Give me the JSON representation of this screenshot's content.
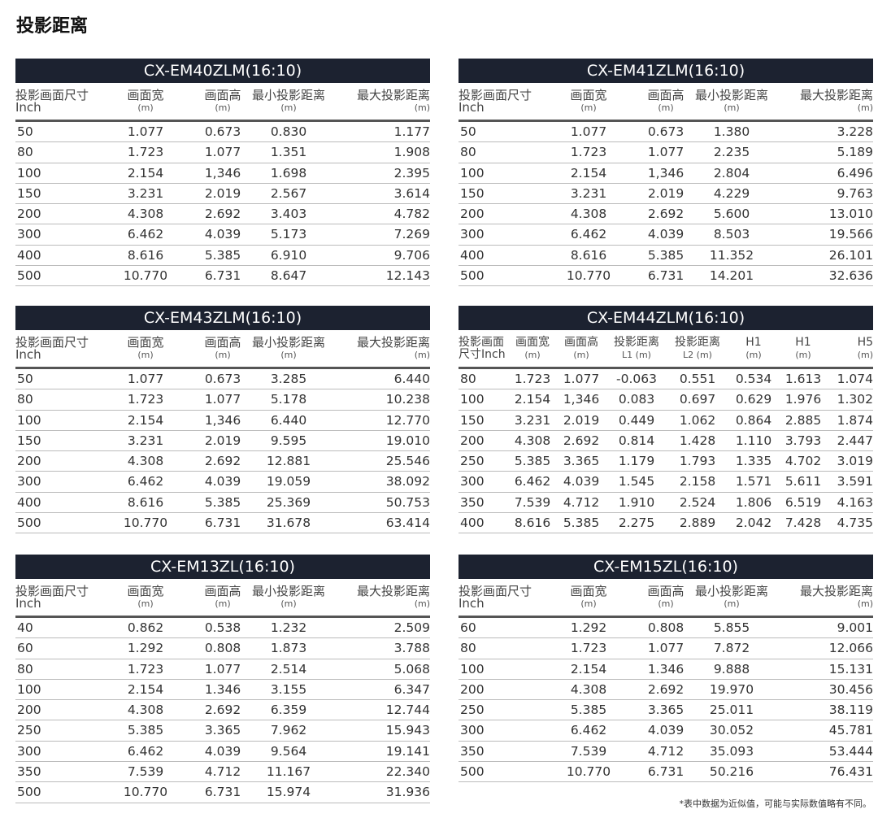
{
  "page_title": "投影距离",
  "footnote": "*表中数据为近似值，可能与实际数值略有不同。",
  "tables": [
    {
      "title": "CX-EM40ZLM(16:10)",
      "headers": [
        {
          "top": "投影画面尺寸",
          "sub": "Inch"
        },
        {
          "top": "画面宽",
          "sub": "(m)"
        },
        {
          "top": "画面高",
          "sub": "(m)"
        },
        {
          "top": "最小投影距离",
          "sub": "(m)"
        },
        {
          "top": "最大投影距离",
          "sub": "(m)"
        }
      ],
      "rows": [
        [
          "50",
          "1.077",
          "0.673",
          "0.830",
          "1.177"
        ],
        [
          "80",
          "1.723",
          "1.077",
          "1.351",
          "1.908"
        ],
        [
          "100",
          "2.154",
          "1,346",
          "1.698",
          "2.395"
        ],
        [
          "150",
          "3.231",
          "2.019",
          "2.567",
          "3.614"
        ],
        [
          "200",
          "4.308",
          "2.692",
          "3.403",
          "4.782"
        ],
        [
          "300",
          "6.462",
          "4.039",
          "5.173",
          "7.269"
        ],
        [
          "400",
          "8.616",
          "5.385",
          "6.910",
          "9.706"
        ],
        [
          "500",
          "10.770",
          "6.731",
          "8.647",
          "12.143"
        ]
      ]
    },
    {
      "title": "CX-EM41ZLM(16:10)",
      "headers": [
        {
          "top": "投影画面尺寸",
          "sub": "Inch"
        },
        {
          "top": "画面宽",
          "sub": "(m)"
        },
        {
          "top": "画面高",
          "sub": "(m)"
        },
        {
          "top": "最小投影距离",
          "sub": "(m)"
        },
        {
          "top": "最大投影距离",
          "sub": "(m)"
        }
      ],
      "rows": [
        [
          "50",
          "1.077",
          "0.673",
          "1.380",
          "3.228"
        ],
        [
          "80",
          "1.723",
          "1.077",
          "2.235",
          "5.189"
        ],
        [
          "100",
          "2.154",
          "1,346",
          "2.804",
          "6.496"
        ],
        [
          "150",
          "3.231",
          "2.019",
          "4.229",
          "9.763"
        ],
        [
          "200",
          "4.308",
          "2.692",
          "5.600",
          "13.010"
        ],
        [
          "300",
          "6.462",
          "4.039",
          "8.503",
          "19.566"
        ],
        [
          "400",
          "8.616",
          "5.385",
          "11.352",
          "26.101"
        ],
        [
          "500",
          "10.770",
          "6.731",
          "14.201",
          "32.636"
        ]
      ]
    },
    {
      "title": "CX-EM43ZLM(16:10)",
      "headers": [
        {
          "top": "投影画面尺寸",
          "sub": "Inch"
        },
        {
          "top": "画面宽",
          "sub": "(m)"
        },
        {
          "top": "画面高",
          "sub": "(m)"
        },
        {
          "top": "最小投影距离",
          "sub": "(m)"
        },
        {
          "top": "最大投影距离",
          "sub": "(m)"
        }
      ],
      "rows": [
        [
          "50",
          "1.077",
          "0.673",
          "3.285",
          "6.440"
        ],
        [
          "80",
          "1.723",
          "1.077",
          "5.178",
          "10.238"
        ],
        [
          "100",
          "2.154",
          "1,346",
          "6.440",
          "12.770"
        ],
        [
          "150",
          "3.231",
          "2.019",
          "9.595",
          "19.010"
        ],
        [
          "200",
          "4.308",
          "2.692",
          "12.881",
          "25.546"
        ],
        [
          "300",
          "6.462",
          "4.039",
          "19.059",
          "38.092"
        ],
        [
          "400",
          "8.616",
          "5.385",
          "25.369",
          "50.753"
        ],
        [
          "500",
          "10.770",
          "6.731",
          "31.678",
          "63.414"
        ]
      ]
    },
    {
      "title": "CX-EM44ZLM(16:10)",
      "headers": [
        {
          "top": "投影画面",
          "sub": "尺寸Inch"
        },
        {
          "top": "画面宽",
          "sub": "(m)"
        },
        {
          "top": "画面高",
          "sub": "(m)"
        },
        {
          "top": "投影距离",
          "sub": "L1 (m)"
        },
        {
          "top": "投影距离",
          "sub": "L2 (m)"
        },
        {
          "top": "H1",
          "sub": "(m)"
        },
        {
          "top": "H1",
          "sub": "(m)"
        },
        {
          "top": "H5",
          "sub": "(m)"
        }
      ],
      "rows": [
        [
          "80",
          "1.723",
          "1.077",
          "-0.063",
          "0.551",
          "0.534",
          "1.613",
          "1.074"
        ],
        [
          "100",
          "2.154",
          "1,346",
          "0.083",
          "0.697",
          "0.629",
          "1.976",
          "1.302"
        ],
        [
          "150",
          "3.231",
          "2.019",
          "0.449",
          "1.062",
          "0.864",
          "2.885",
          "1.874"
        ],
        [
          "200",
          "4.308",
          "2.692",
          "0.814",
          "1.428",
          "1.110",
          "3.793",
          "2.447"
        ],
        [
          "250",
          "5.385",
          "3.365",
          "1.179",
          "1.793",
          "1.335",
          "4.702",
          "3.019"
        ],
        [
          "300",
          "6.462",
          "4.039",
          "1.545",
          "2.158",
          "1.571",
          "5.611",
          "3.591"
        ],
        [
          "350",
          "7.539",
          "4.712",
          "1.910",
          "2.524",
          "1.806",
          "6.519",
          "4.163"
        ],
        [
          "400",
          "8.616",
          "5.385",
          "2.275",
          "2.889",
          "2.042",
          "7.428",
          "4.735"
        ]
      ]
    },
    {
      "title": "CX-EM13ZL(16:10)",
      "headers": [
        {
          "top": "投影画面尺寸",
          "sub": "Inch"
        },
        {
          "top": "画面宽",
          "sub": "(m)"
        },
        {
          "top": "画面高",
          "sub": "(m)"
        },
        {
          "top": "最小投影距离",
          "sub": "(m)"
        },
        {
          "top": "最大投影距离",
          "sub": "(m)"
        }
      ],
      "rows": [
        [
          "40",
          "0.862",
          "0.538",
          "1.232",
          "2.509"
        ],
        [
          "60",
          "1.292",
          "0.808",
          "1.873",
          "3.788"
        ],
        [
          "80",
          "1.723",
          "1.077",
          "2.514",
          "5.068"
        ],
        [
          "100",
          "2.154",
          "1.346",
          "3.155",
          "6.347"
        ],
        [
          "200",
          "4.308",
          "2.692",
          "6.359",
          "12.744"
        ],
        [
          "250",
          "5.385",
          "3.365",
          "7.962",
          "15.943"
        ],
        [
          "300",
          "6.462",
          "4.039",
          "9.564",
          "19.141"
        ],
        [
          "350",
          "7.539",
          "4.712",
          "11.167",
          "22.340"
        ],
        [
          "500",
          "10.770",
          "6.731",
          "15.974",
          "31.936"
        ]
      ]
    },
    {
      "title": "CX-EM15ZL(16:10)",
      "headers": [
        {
          "top": "投影画面尺寸",
          "sub": "Inch"
        },
        {
          "top": "画面宽",
          "sub": "(m)"
        },
        {
          "top": "画面高",
          "sub": "(m)"
        },
        {
          "top": "最小投影距离",
          "sub": "(m)"
        },
        {
          "top": "最大投影距离",
          "sub": "(m)"
        }
      ],
      "rows": [
        [
          "60",
          "1.292",
          "0.808",
          "5.855",
          "9.001"
        ],
        [
          "80",
          "1.723",
          "1.077",
          "7.872",
          "12.066"
        ],
        [
          "100",
          "2.154",
          "1.346",
          "9.888",
          "15.131"
        ],
        [
          "200",
          "4.308",
          "2.692",
          "19.970",
          "30.456"
        ],
        [
          "250",
          "5.385",
          "3.365",
          "25.011",
          "38.119"
        ],
        [
          "300",
          "6.462",
          "4.039",
          "30.052",
          "45.781"
        ],
        [
          "350",
          "7.539",
          "4.712",
          "35.093",
          "53.444"
        ],
        [
          "500",
          "10.770",
          "6.731",
          "50.216",
          "76.431"
        ]
      ]
    }
  ]
}
